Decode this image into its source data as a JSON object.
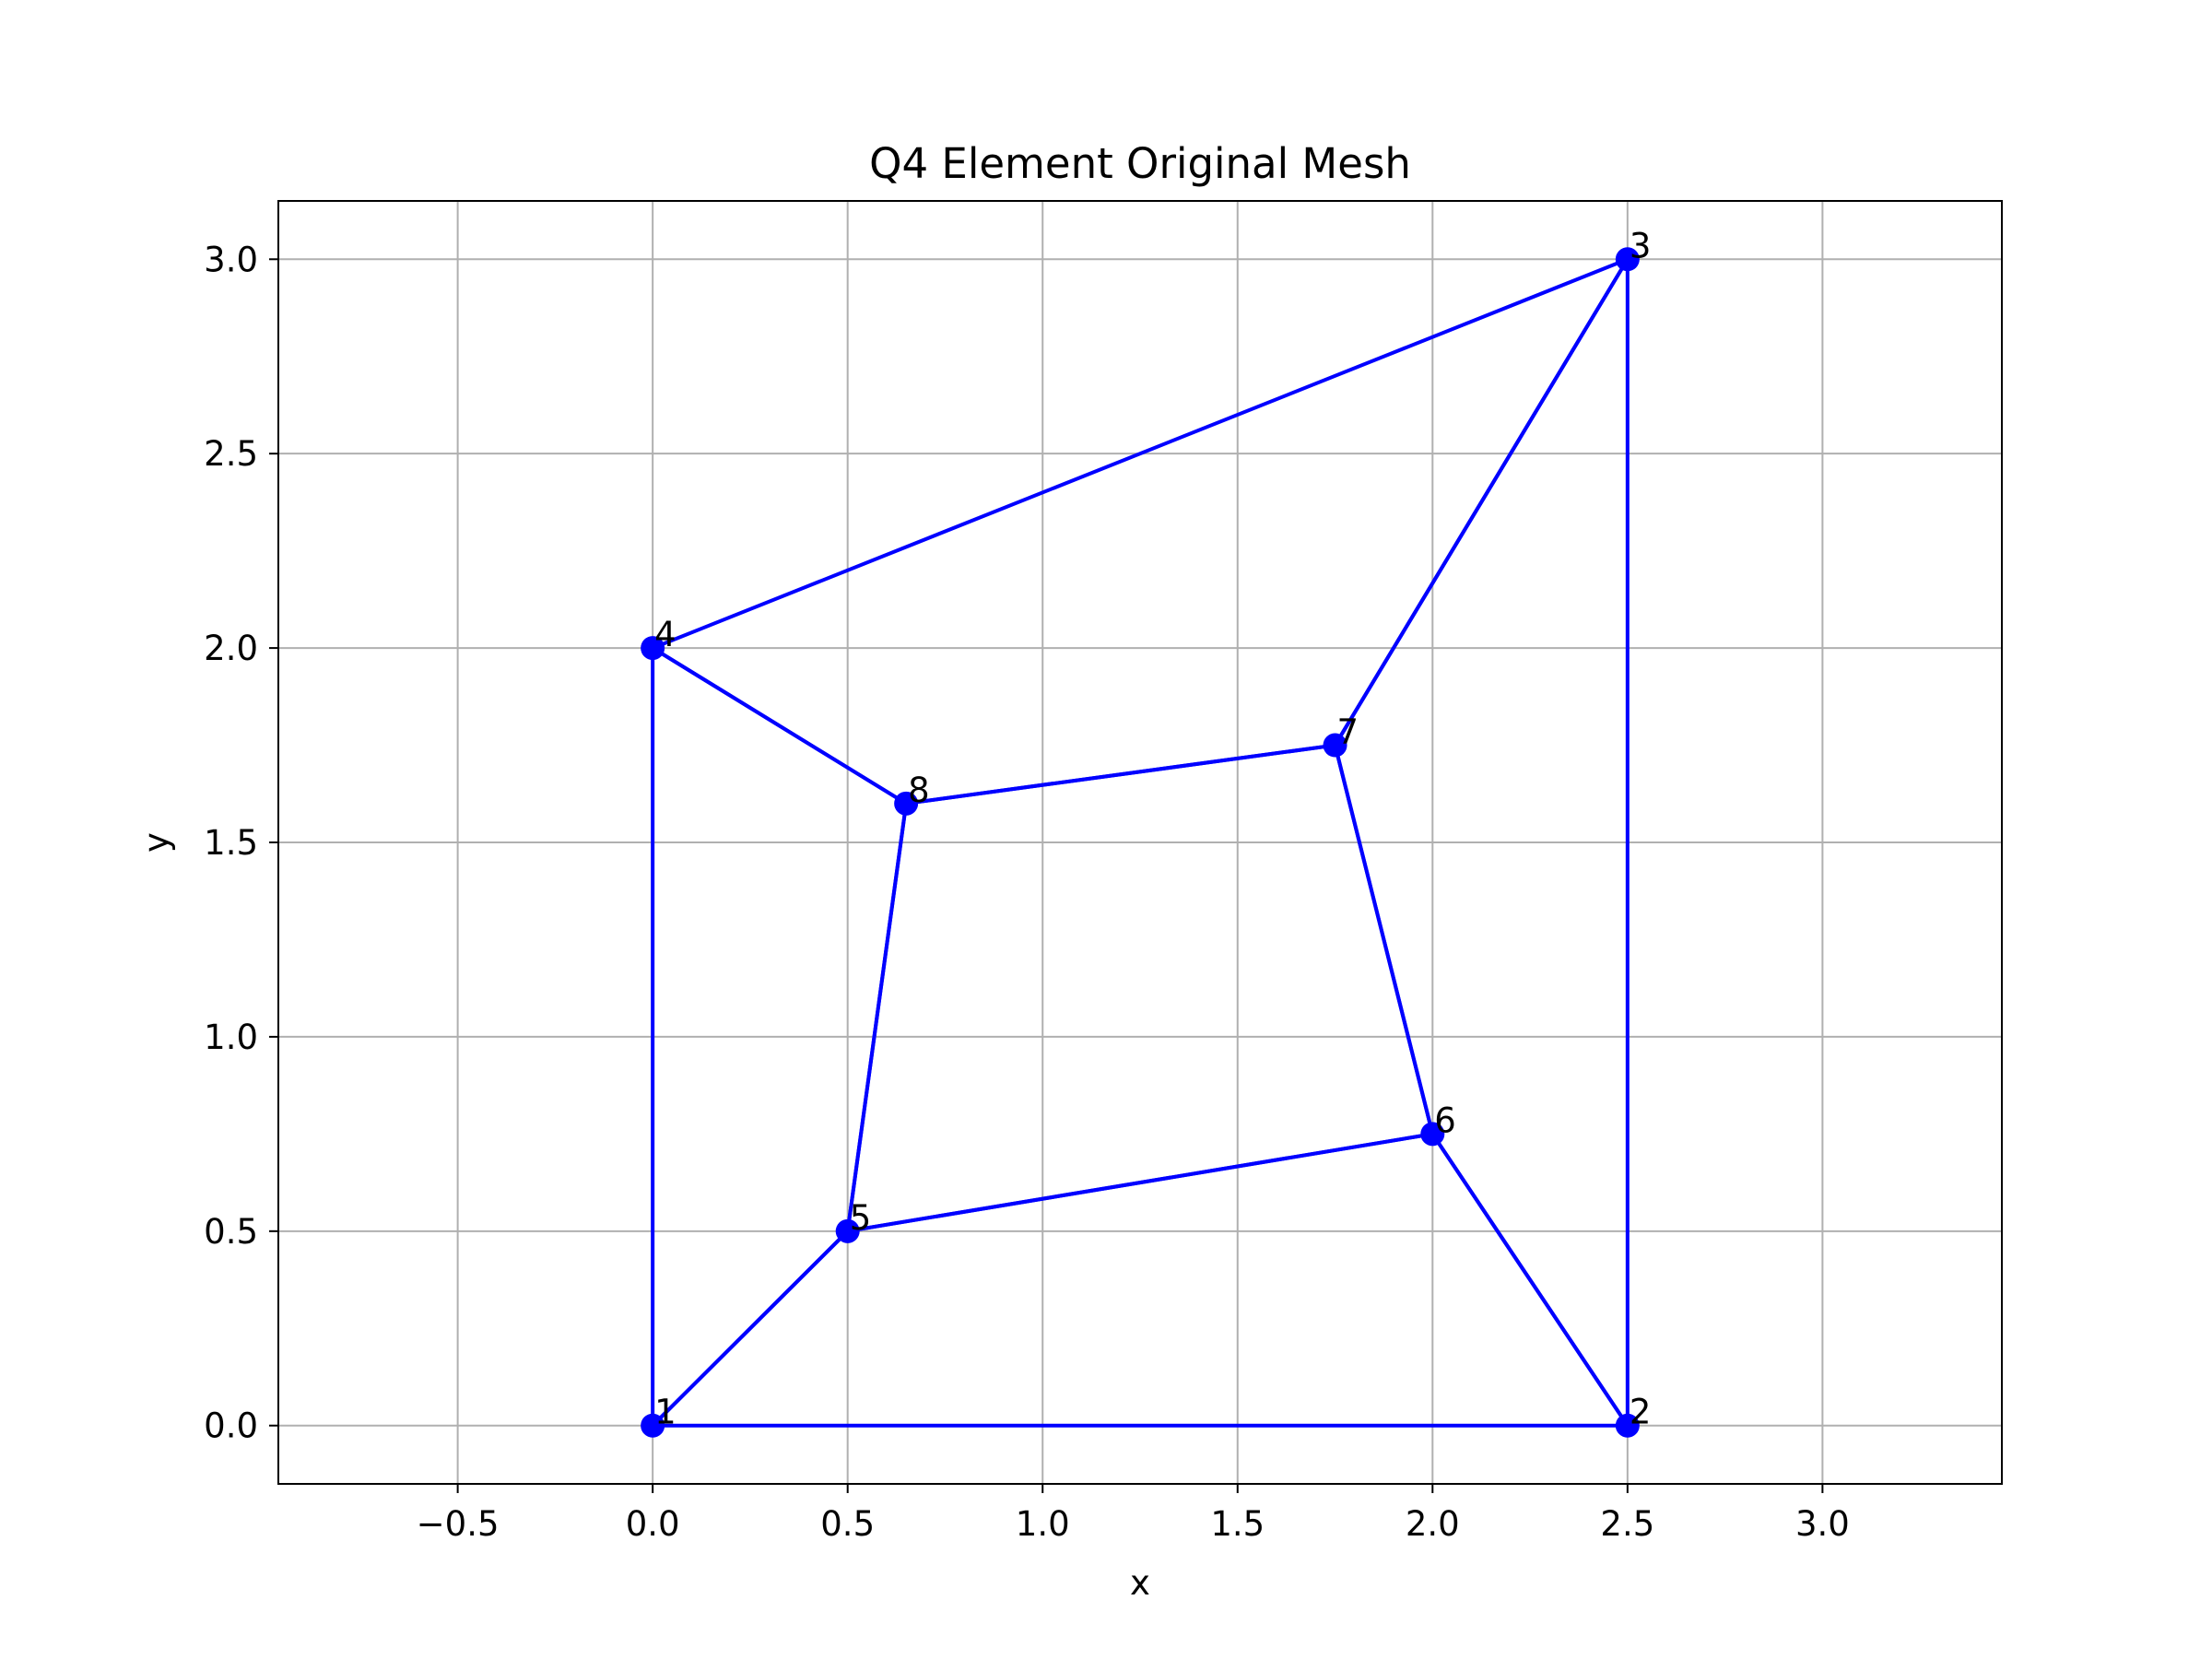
{
  "chart_data": {
    "type": "line",
    "title": "Q4 Element Original Mesh",
    "xlabel": "x",
    "ylabel": "y",
    "xlim": [
      -0.96,
      3.46
    ],
    "ylim": [
      -0.15,
      3.15
    ],
    "xticks": [
      -0.5,
      0.0,
      0.5,
      1.0,
      1.5,
      2.0,
      2.5,
      3.0
    ],
    "xtick_labels": [
      "−0.5",
      "0.0",
      "0.5",
      "1.0",
      "1.5",
      "2.0",
      "2.5",
      "3.0"
    ],
    "yticks": [
      0.0,
      0.5,
      1.0,
      1.5,
      2.0,
      2.5,
      3.0
    ],
    "ytick_labels": [
      "0.0",
      "0.5",
      "1.0",
      "1.5",
      "2.0",
      "2.5",
      "3.0"
    ],
    "grid": true,
    "color": "#0000ff",
    "nodes": [
      {
        "label": "1",
        "x": 0.0,
        "y": 0.0
      },
      {
        "label": "2",
        "x": 2.5,
        "y": 0.0
      },
      {
        "label": "3",
        "x": 2.5,
        "y": 3.0
      },
      {
        "label": "4",
        "x": 0.0,
        "y": 2.0
      },
      {
        "label": "5",
        "x": 0.5,
        "y": 0.5
      },
      {
        "label": "6",
        "x": 2.0,
        "y": 0.75
      },
      {
        "label": "7",
        "x": 1.75,
        "y": 1.75
      },
      {
        "label": "8",
        "x": 0.65,
        "y": 1.6
      }
    ],
    "elements": [
      [
        1,
        2,
        6,
        5
      ],
      [
        2,
        3,
        7,
        6
      ],
      [
        3,
        4,
        8,
        7
      ],
      [
        4,
        1,
        5,
        8
      ],
      [
        5,
        6,
        7,
        8
      ]
    ]
  }
}
